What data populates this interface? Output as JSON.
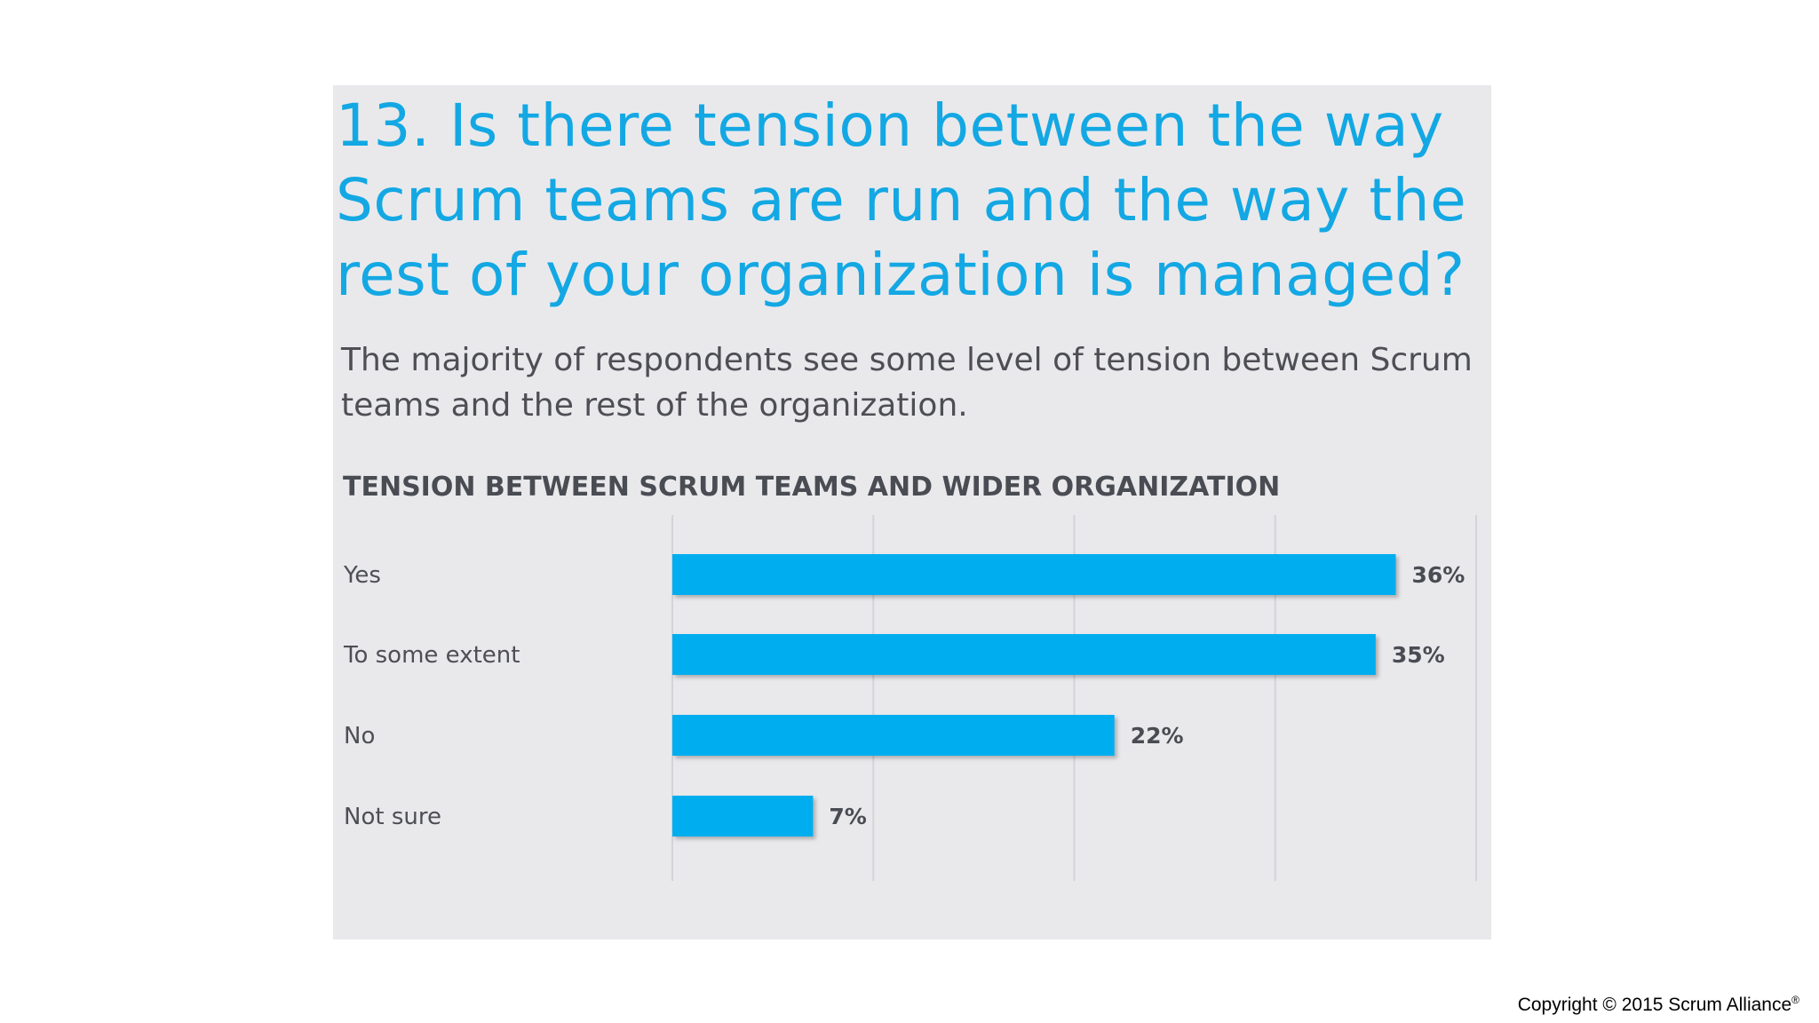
{
  "slide": {
    "question": "13. Is there tension between the way Scrum teams are run and the way the rest of your organization is managed?",
    "subtitle": "The majority of respondents see some level of tension between Scrum teams and the rest of the organization.",
    "copyright": "Copyright © 2015 Scrum Alliance",
    "copyright_mark": "®"
  },
  "colors": {
    "accent": "#13a8e3",
    "bar": "#00aeef",
    "panel": "#e9e9ec",
    "gridline": "#d3d3d8",
    "text": "#4e4f55"
  },
  "chart_data": {
    "type": "bar",
    "orientation": "horizontal",
    "title": "TENSION BETWEEN SCRUM TEAMS AND WIDER ORGANIZATION",
    "categories": [
      "Yes",
      "To some extent",
      "No",
      "Not sure"
    ],
    "values": [
      36,
      35,
      22,
      7
    ],
    "value_labels": [
      "36%",
      "35%",
      "22%",
      "7%"
    ],
    "unit": "%",
    "xlim": [
      0,
      40
    ],
    "grid": true,
    "legend": "none"
  }
}
